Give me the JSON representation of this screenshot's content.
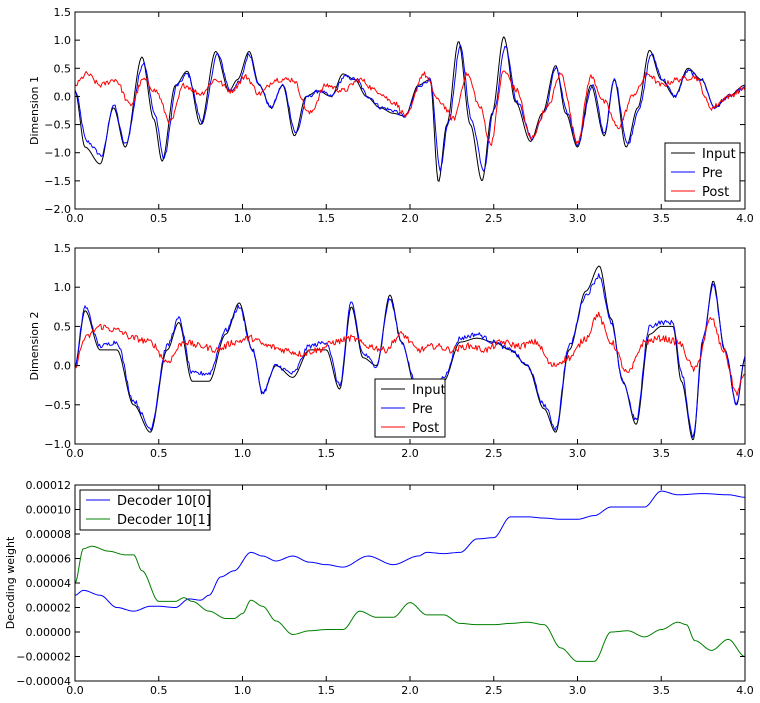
{
  "figure": {
    "background": "#ffffff"
  },
  "colors": {
    "input": "#000000",
    "pre": "#0000ff",
    "post": "#ff0000",
    "decoder0": "#0000ff",
    "decoder1": "#008000"
  },
  "chart_data": [
    {
      "type": "line",
      "title": "",
      "xlabel": "",
      "ylabel": "Dimension 1",
      "xlim": [
        0,
        4
      ],
      "ylim": [
        -2,
        1.5
      ],
      "xticks": [
        "0.0",
        "0.5",
        "1.0",
        "1.5",
        "2.0",
        "2.5",
        "3.0",
        "3.5",
        "4.0"
      ],
      "yticks": [
        "−2.0",
        "−1.5",
        "−1.0",
        "−0.5",
        "0.0",
        "0.5",
        "1.0",
        "1.5"
      ],
      "legend": {
        "position": "lower-right",
        "entries": [
          "Input",
          "Pre",
          "Post"
        ]
      },
      "grid": false,
      "series": [
        {
          "name": "Input",
          "color": "#000000",
          "x": [
            0.0,
            0.06,
            0.15,
            0.23,
            0.3,
            0.4,
            0.47,
            0.52,
            0.6,
            0.67,
            0.75,
            0.84,
            0.92,
            0.97,
            1.04,
            1.1,
            1.17,
            1.24,
            1.31,
            1.38,
            1.45,
            1.53,
            1.6,
            1.67,
            1.74,
            1.82,
            1.9,
            1.97,
            2.05,
            2.12,
            2.17,
            2.22,
            2.29,
            2.36,
            2.43,
            2.49,
            2.56,
            2.63,
            2.72,
            2.79,
            2.87,
            2.93,
            3.0,
            3.08,
            3.16,
            3.22,
            3.29,
            3.36,
            3.43,
            3.5,
            3.58,
            3.66,
            3.74,
            3.82,
            3.9,
            4.0
          ],
          "y": [
            0.1,
            -0.9,
            -1.2,
            -0.2,
            -0.9,
            0.7,
            -0.4,
            -1.15,
            0.2,
            0.45,
            -0.5,
            0.8,
            0.1,
            0.3,
            0.8,
            0.2,
            -0.2,
            0.2,
            -0.7,
            0.0,
            0.1,
            0.0,
            0.4,
            0.3,
            0.0,
            -0.2,
            -0.3,
            -0.35,
            0.2,
            0.3,
            -1.52,
            -0.5,
            0.98,
            -0.5,
            -1.5,
            -0.3,
            1.06,
            -0.1,
            -0.8,
            -0.3,
            0.55,
            -0.3,
            -0.9,
            0.2,
            -0.7,
            0.3,
            -0.9,
            -0.2,
            0.82,
            0.3,
            0.0,
            0.5,
            0.3,
            -0.2,
            0.0,
            0.2
          ]
        },
        {
          "name": "Pre",
          "color": "#0000ff",
          "x": [
            0.0,
            0.07,
            0.16,
            0.23,
            0.3,
            0.41,
            0.48,
            0.53,
            0.61,
            0.67,
            0.76,
            0.85,
            0.93,
            0.98,
            1.04,
            1.1,
            1.17,
            1.24,
            1.32,
            1.39,
            1.46,
            1.53,
            1.61,
            1.68,
            1.75,
            1.83,
            1.9,
            1.97,
            2.06,
            2.12,
            2.18,
            2.23,
            2.3,
            2.37,
            2.44,
            2.5,
            2.57,
            2.64,
            2.73,
            2.8,
            2.87,
            2.94,
            3.0,
            3.09,
            3.16,
            3.22,
            3.3,
            3.37,
            3.44,
            3.51,
            3.58,
            3.66,
            3.74,
            3.82,
            3.9,
            4.0
          ],
          "y": [
            0.1,
            -0.8,
            -1.05,
            -0.15,
            -0.85,
            0.6,
            -0.35,
            -1.1,
            0.2,
            0.4,
            -0.45,
            0.75,
            0.1,
            0.25,
            0.75,
            0.2,
            -0.2,
            0.2,
            -0.65,
            0.0,
            0.1,
            0.0,
            0.35,
            0.3,
            0.0,
            -0.2,
            -0.25,
            -0.35,
            0.2,
            0.3,
            -1.3,
            -0.45,
            0.88,
            -0.45,
            -1.3,
            -0.25,
            0.9,
            -0.1,
            -0.75,
            -0.3,
            0.5,
            -0.3,
            -0.85,
            0.2,
            -0.65,
            0.3,
            -0.85,
            -0.2,
            0.75,
            0.3,
            0.0,
            0.45,
            0.3,
            -0.2,
            0.0,
            0.15
          ]
        },
        {
          "name": "Post",
          "color": "#ff0000",
          "x": [
            0.0,
            0.07,
            0.15,
            0.24,
            0.33,
            0.41,
            0.48,
            0.57,
            0.65,
            0.75,
            0.84,
            0.93,
            1.02,
            1.1,
            1.2,
            1.3,
            1.4,
            1.5,
            1.6,
            1.7,
            1.8,
            1.9,
            1.98,
            2.08,
            2.18,
            2.26,
            2.34,
            2.42,
            2.48,
            2.56,
            2.64,
            2.72,
            2.82,
            2.9,
            3.0,
            3.08,
            3.16,
            3.24,
            3.34,
            3.42,
            3.5,
            3.6,
            3.7,
            3.8,
            3.9,
            4.0
          ],
          "y": [
            0.2,
            0.4,
            0.2,
            0.3,
            -0.15,
            0.3,
            0.1,
            -0.45,
            0.2,
            0.05,
            0.3,
            0.1,
            0.35,
            0.05,
            0.3,
            0.3,
            -0.3,
            0.2,
            0.1,
            0.3,
            0.1,
            -0.1,
            -0.35,
            0.4,
            -0.1,
            -0.4,
            0.4,
            -0.2,
            -0.85,
            0.45,
            0.1,
            -0.75,
            -0.2,
            0.4,
            -0.8,
            0.35,
            -0.1,
            -0.55,
            0.05,
            0.4,
            0.2,
            0.3,
            0.35,
            -0.2,
            0.0,
            0.15
          ]
        }
      ]
    },
    {
      "type": "line",
      "title": "",
      "xlabel": "",
      "ylabel": "Dimension 2",
      "xlim": [
        0,
        4
      ],
      "ylim": [
        -1,
        1.5
      ],
      "xticks": [
        "0.0",
        "0.5",
        "1.0",
        "1.5",
        "2.0",
        "2.5",
        "3.0",
        "3.5",
        "4.0"
      ],
      "yticks": [
        "−1.0",
        "−0.5",
        "0.0",
        "0.5",
        "1.0",
        "1.5"
      ],
      "legend": {
        "position": "lower-center",
        "entries": [
          "Input",
          "Pre",
          "Post"
        ]
      },
      "grid": false,
      "series": [
        {
          "name": "Input",
          "color": "#000000",
          "x": [
            0.0,
            0.06,
            0.15,
            0.25,
            0.35,
            0.45,
            0.55,
            0.62,
            0.7,
            0.8,
            0.9,
            0.98,
            1.06,
            1.12,
            1.2,
            1.3,
            1.4,
            1.5,
            1.58,
            1.65,
            1.72,
            1.8,
            1.88,
            1.95,
            2.03,
            2.1,
            2.2,
            2.3,
            2.4,
            2.5,
            2.6,
            2.7,
            2.8,
            2.87,
            2.95,
            3.05,
            3.13,
            3.2,
            3.27,
            3.35,
            3.43,
            3.5,
            3.57,
            3.62,
            3.69,
            3.75,
            3.81,
            3.88,
            3.95,
            4.0
          ],
          "y": [
            0.0,
            0.7,
            0.2,
            0.2,
            -0.5,
            -0.85,
            0.2,
            0.55,
            -0.2,
            -0.2,
            0.4,
            0.8,
            0.2,
            -0.35,
            0.0,
            -0.15,
            0.2,
            0.2,
            -0.3,
            0.75,
            0.1,
            0.0,
            0.9,
            0.3,
            -0.25,
            -0.55,
            -0.2,
            0.3,
            0.35,
            0.3,
            0.2,
            0.0,
            -0.55,
            -0.85,
            0.2,
            0.95,
            1.27,
            0.6,
            -0.2,
            -0.75,
            0.4,
            0.5,
            0.5,
            -0.2,
            -0.95,
            0.3,
            1.08,
            0.2,
            -0.5,
            0.1
          ]
        },
        {
          "name": "Pre",
          "color": "#0000ff",
          "x": [
            0.0,
            0.06,
            0.15,
            0.25,
            0.35,
            0.45,
            0.55,
            0.62,
            0.7,
            0.8,
            0.9,
            0.98,
            1.06,
            1.12,
            1.2,
            1.3,
            1.4,
            1.5,
            1.58,
            1.65,
            1.72,
            1.8,
            1.88,
            1.95,
            2.03,
            2.1,
            2.2,
            2.3,
            2.4,
            2.5,
            2.6,
            2.7,
            2.8,
            2.87,
            2.95,
            3.05,
            3.13,
            3.2,
            3.27,
            3.35,
            3.43,
            3.5,
            3.57,
            3.62,
            3.69,
            3.75,
            3.81,
            3.88,
            3.95,
            4.0
          ],
          "y": [
            0.0,
            0.75,
            0.25,
            0.3,
            -0.45,
            -0.8,
            0.25,
            0.6,
            -0.1,
            -0.1,
            0.45,
            0.75,
            0.2,
            -0.35,
            0.0,
            -0.1,
            0.25,
            0.3,
            -0.25,
            0.8,
            0.15,
            0.0,
            0.85,
            0.3,
            -0.2,
            -0.5,
            -0.15,
            0.35,
            0.4,
            0.3,
            0.2,
            0.0,
            -0.5,
            -0.8,
            0.25,
            0.9,
            1.15,
            0.55,
            -0.2,
            -0.7,
            0.5,
            0.55,
            0.55,
            -0.1,
            -0.9,
            0.35,
            1.05,
            0.2,
            -0.5,
            0.1
          ]
        },
        {
          "name": "Post",
          "color": "#ff0000",
          "x": [
            0.0,
            0.06,
            0.15,
            0.25,
            0.35,
            0.45,
            0.55,
            0.65,
            0.75,
            0.85,
            0.95,
            1.05,
            1.15,
            1.25,
            1.35,
            1.45,
            1.55,
            1.65,
            1.75,
            1.85,
            1.95,
            2.05,
            2.15,
            2.25,
            2.35,
            2.45,
            2.55,
            2.65,
            2.75,
            2.85,
            2.95,
            3.05,
            3.12,
            3.2,
            3.3,
            3.4,
            3.5,
            3.6,
            3.7,
            3.8,
            3.87,
            3.95,
            4.0
          ],
          "y": [
            0.0,
            0.35,
            0.5,
            0.45,
            0.35,
            0.3,
            0.05,
            0.3,
            0.25,
            0.2,
            0.3,
            0.35,
            0.25,
            0.2,
            0.15,
            0.2,
            0.3,
            0.35,
            0.25,
            0.2,
            0.4,
            0.2,
            0.25,
            0.2,
            0.25,
            0.2,
            0.3,
            0.25,
            0.3,
            0.0,
            0.1,
            0.35,
            0.65,
            0.3,
            -0.1,
            0.3,
            0.35,
            0.3,
            -0.05,
            0.6,
            0.2,
            -0.35,
            -0.1
          ]
        }
      ]
    },
    {
      "type": "line",
      "title": "",
      "xlabel": "",
      "ylabel": "Decoding weight",
      "xlim": [
        0,
        4
      ],
      "ylim": [
        -4e-05,
        0.00012
      ],
      "xticks": [
        "0.0",
        "0.5",
        "1.0",
        "1.5",
        "2.0",
        "2.5",
        "3.0",
        "3.5",
        "4.0"
      ],
      "yticks": [
        "−0.00004",
        "−0.00002",
        "0.00000",
        "0.00002",
        "0.00004",
        "0.00006",
        "0.00008",
        "0.00010",
        "0.00012"
      ],
      "legend": {
        "position": "upper-left",
        "entries": [
          "Decoder 10[0]",
          "Decoder 10[1]"
        ]
      },
      "grid": false,
      "series": [
        {
          "name": "Decoder 10[0]",
          "color": "#0000ff",
          "x": [
            0.0,
            0.05,
            0.15,
            0.25,
            0.35,
            0.45,
            0.5,
            0.6,
            0.68,
            0.75,
            0.8,
            0.87,
            0.95,
            1.05,
            1.12,
            1.2,
            1.3,
            1.4,
            1.5,
            1.6,
            1.75,
            1.9,
            2.05,
            2.1,
            2.2,
            2.3,
            2.4,
            2.5,
            2.6,
            2.7,
            2.8,
            2.9,
            3.0,
            3.1,
            3.2,
            3.3,
            3.4,
            3.5,
            3.6,
            3.75,
            3.9,
            4.0
          ],
          "y": [
            3e-05,
            3.4e-05,
            3e-05,
            2e-05,
            1.7e-05,
            2.1e-05,
            2.1e-05,
            2e-05,
            2.7e-05,
            2.6e-05,
            3e-05,
            4.5e-05,
            5e-05,
            6.5e-05,
            6.2e-05,
            5.8e-05,
            6.2e-05,
            5.7e-05,
            5.5e-05,
            5.3e-05,
            6.2e-05,
            5.5e-05,
            6.2e-05,
            6.5e-05,
            6.4e-05,
            6.5e-05,
            7.6e-05,
            7.7e-05,
            9.4e-05,
            9.4e-05,
            9.3e-05,
            9.2e-05,
            9.2e-05,
            9.5e-05,
            0.000102,
            0.000102,
            0.000102,
            0.000115,
            0.000112,
            0.000113,
            0.000112,
            0.00011
          ]
        },
        {
          "name": "Decoder 10[1]",
          "color": "#008000",
          "x": [
            0.0,
            0.05,
            0.1,
            0.2,
            0.3,
            0.35,
            0.4,
            0.5,
            0.6,
            0.65,
            0.7,
            0.8,
            0.9,
            0.95,
            1.0,
            1.05,
            1.12,
            1.2,
            1.3,
            1.4,
            1.5,
            1.6,
            1.7,
            1.8,
            1.9,
            2.0,
            2.1,
            2.2,
            2.3,
            2.4,
            2.5,
            2.6,
            2.7,
            2.8,
            2.9,
            3.0,
            3.1,
            3.2,
            3.3,
            3.4,
            3.5,
            3.6,
            3.65,
            3.7,
            3.8,
            3.9,
            4.0
          ],
          "y": [
            4e-05,
            6.8e-05,
            7e-05,
            6.6e-05,
            6.3e-05,
            6.3e-05,
            5e-05,
            2.5e-05,
            2.5e-05,
            2.8e-05,
            2.5e-05,
            1.7e-05,
            1.1e-05,
            1.1e-05,
            1.5e-05,
            2.6e-05,
            2.1e-05,
            9e-06,
            -2e-06,
            1e-06,
            2e-06,
            2e-06,
            1.7e-05,
            1.2e-05,
            1.2e-05,
            2.4e-05,
            1.4e-05,
            1.4e-05,
            7e-06,
            6e-06,
            6e-06,
            7e-06,
            8e-06,
            6e-06,
            -1.3e-05,
            -2.4e-05,
            -2.4e-05,
            0.0,
            1e-06,
            -4e-06,
            2e-06,
            8e-06,
            6e-06,
            -7e-06,
            -1.5e-05,
            -6e-06,
            -2e-05
          ]
        }
      ]
    }
  ]
}
